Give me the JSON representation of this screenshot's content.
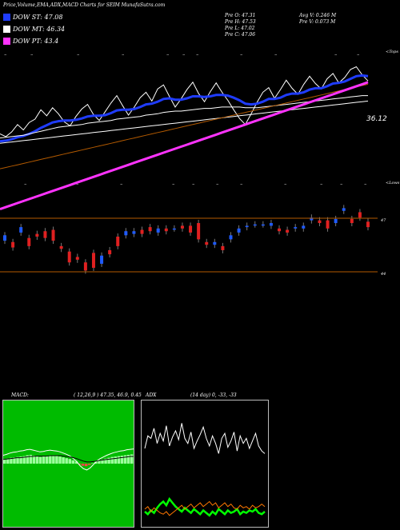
{
  "header": {
    "title": "Price,Volume,EMA,ADX,MACD Charts for SEIM MunafaSutra.com",
    "pivots": [
      {
        "label": "DOW ST: 47.08",
        "color": "#1f3cff"
      },
      {
        "label": "DOW MT: 46.34",
        "color": "#ffffff"
      },
      {
        "label": "DOW PT: 43.4",
        "color": "#ff33ff"
      }
    ],
    "prev": [
      "Pre O: 47.31",
      "Pre H: 47.53",
      "Pre L: 47.02",
      "Pre C: 47.06"
    ],
    "avg": [
      "Avg V: 0.246 M",
      "Pre V: 0.073 M"
    ]
  },
  "chart_data": [
    {
      "type": "line",
      "name": "price-ema-panel",
      "labels": {
        "tops": "<Tops",
        "lows": "<Lows",
        "last_close": "36.12"
      },
      "series": [
        {
          "color": "#ffffff",
          "values": [
            31.2,
            30.8,
            31.5,
            32.6,
            31.8,
            32.9,
            33.4,
            34.8,
            33.9,
            35.1,
            34.2,
            33.0,
            32.4,
            33.8,
            34.9,
            35.6,
            34.1,
            33.2,
            34.5,
            35.8,
            36.9,
            35.4,
            34.0,
            35.2,
            36.6,
            37.4,
            36.1,
            37.9,
            38.5,
            36.8,
            35.2,
            36.4,
            37.8,
            38.9,
            37.2,
            36.0,
            37.5,
            38.8,
            37.4,
            36.2,
            34.8,
            33.5,
            32.6,
            34.2,
            35.9,
            37.4,
            38.1,
            36.5,
            37.8,
            39.2,
            38.0,
            37.1,
            38.6,
            39.8,
            38.7,
            37.9,
            39.4,
            40.2,
            38.8,
            39.6,
            40.8,
            41.2,
            40.0,
            39.1
          ]
        },
        {
          "color": "#1f3cff",
          "values": [
            30.1,
            30.2,
            30.4,
            30.7,
            30.9,
            31.2,
            31.6,
            32.1,
            32.5,
            32.9,
            33.1,
            33.2,
            33.2,
            33.3,
            33.5,
            33.8,
            33.9,
            33.9,
            34.0,
            34.3,
            34.7,
            34.8,
            34.8,
            34.9,
            35.2,
            35.6,
            35.7,
            36.0,
            36.4,
            36.5,
            36.3,
            36.3,
            36.5,
            36.8,
            36.8,
            36.7,
            36.8,
            37.0,
            37.0,
            36.9,
            36.6,
            36.2,
            35.7,
            35.6,
            35.7,
            36.0,
            36.4,
            36.4,
            36.6,
            37.0,
            37.2,
            37.2,
            37.4,
            37.8,
            38.0,
            38.0,
            38.3,
            38.7,
            38.8,
            39.0,
            39.4,
            39.8,
            39.9,
            39.8
          ]
        },
        {
          "color": "#ffffff",
          "values": [
            30.6,
            30.7,
            30.8,
            30.9,
            31.0,
            31.2,
            31.4,
            31.6,
            31.8,
            32.0,
            32.2,
            32.3,
            32.4,
            32.5,
            32.6,
            32.8,
            32.9,
            33.0,
            33.1,
            33.2,
            33.4,
            33.5,
            33.6,
            33.7,
            33.8,
            34.0,
            34.1,
            34.2,
            34.4,
            34.5,
            34.6,
            34.6,
            34.7,
            34.8,
            34.9,
            35.0,
            35.0,
            35.1,
            35.2,
            35.2,
            35.2,
            35.2,
            35.1,
            35.1,
            35.1,
            35.2,
            35.3,
            35.4,
            35.5,
            35.6,
            35.7,
            35.8,
            35.9,
            36.0,
            36.1,
            36.2,
            36.3,
            36.4,
            36.5,
            36.6,
            36.7,
            36.8,
            36.9,
            36.9
          ]
        },
        {
          "color": "#ffffff",
          "values": [
            29.8,
            29.9,
            30.0,
            30.1,
            30.2,
            30.3,
            30.4,
            30.5,
            30.6,
            30.7,
            30.8,
            30.9,
            31.0,
            31.1,
            31.2,
            31.3,
            31.4,
            31.5,
            31.6,
            31.7,
            31.8,
            31.9,
            32.0,
            32.1,
            32.2,
            32.3,
            32.4,
            32.5,
            32.6,
            32.7,
            32.8,
            32.9,
            33.0,
            33.1,
            33.2,
            33.3,
            33.4,
            33.5,
            33.6,
            33.7,
            33.8,
            33.9,
            34.0,
            34.1,
            34.2,
            34.3,
            34.4,
            34.5,
            34.6,
            34.7,
            34.8,
            34.9,
            35.0,
            35.1,
            35.2,
            35.3,
            35.4,
            35.5,
            35.6,
            35.7,
            35.8,
            35.9,
            36.0,
            36.1
          ]
        },
        {
          "color": "#b35a00",
          "values": [
            26.0,
            26.2,
            26.4,
            26.6,
            26.8,
            27.0,
            27.2,
            27.4,
            27.6,
            27.8,
            28.0,
            28.2,
            28.4,
            28.6,
            28.8,
            29.0,
            29.2,
            29.4,
            29.6,
            29.8,
            30.0,
            30.2,
            30.4,
            30.6,
            30.8,
            31.0,
            31.2,
            31.4,
            31.6,
            31.8,
            32.0,
            32.2,
            32.4,
            32.6,
            32.8,
            33.0,
            33.2,
            33.4,
            33.6,
            33.8,
            34.0,
            34.2,
            34.4,
            34.6,
            34.8,
            35.0,
            35.2,
            35.4,
            35.6,
            35.8,
            36.0,
            36.2,
            36.4,
            36.6,
            36.8,
            37.0,
            37.2,
            37.4,
            37.6,
            37.8,
            38.0,
            38.2,
            38.4,
            38.6
          ]
        },
        {
          "color": "#ff33ff",
          "values": [
            20.0,
            20.3,
            20.6,
            20.9,
            21.2,
            21.5,
            21.8,
            22.1,
            22.4,
            22.7,
            23.0,
            23.3,
            23.6,
            23.9,
            24.2,
            24.5,
            24.8,
            25.1,
            25.4,
            25.7,
            26.0,
            26.3,
            26.6,
            26.9,
            27.2,
            27.5,
            27.8,
            28.1,
            28.4,
            28.7,
            29.0,
            29.3,
            29.6,
            29.9,
            30.2,
            30.5,
            30.8,
            31.1,
            31.4,
            31.7,
            32.0,
            32.3,
            32.6,
            32.9,
            33.2,
            33.5,
            33.8,
            34.1,
            34.4,
            34.7,
            35.0,
            35.3,
            35.6,
            35.9,
            36.2,
            36.5,
            36.8,
            37.1,
            37.4,
            37.7,
            38.0,
            38.3,
            38.6,
            38.9
          ]
        }
      ],
      "ylim": [
        19,
        44
      ]
    },
    {
      "type": "bar",
      "name": "candles",
      "ylabels": [
        "47",
        "44"
      ],
      "ylim": [
        43,
        49.6
      ],
      "candles": [
        {
          "o": 46.0,
          "c": 46.4,
          "up": true
        },
        {
          "o": 45.9,
          "c": 45.5,
          "up": false
        },
        {
          "o": 46.6,
          "c": 47.0,
          "up": true
        },
        {
          "o": 46.2,
          "c": 45.6,
          "up": false
        },
        {
          "o": 46.5,
          "c": 46.3,
          "up": false
        },
        {
          "o": 46.7,
          "c": 46.2,
          "up": false
        },
        {
          "o": 46.8,
          "c": 46.0,
          "up": false
        },
        {
          "o": 45.6,
          "c": 45.4,
          "up": false
        },
        {
          "o": 45.2,
          "c": 44.4,
          "up": false
        },
        {
          "o": 44.8,
          "c": 44.6,
          "up": false
        },
        {
          "o": 44.4,
          "c": 43.8,
          "up": false
        },
        {
          "o": 45.1,
          "c": 44.0,
          "up": false
        },
        {
          "o": 44.3,
          "c": 44.9,
          "up": true
        },
        {
          "o": 45.3,
          "c": 45.0,
          "up": false
        },
        {
          "o": 46.3,
          "c": 45.6,
          "up": false
        },
        {
          "o": 46.4,
          "c": 46.7,
          "up": true
        },
        {
          "o": 46.5,
          "c": 46.7,
          "up": true
        },
        {
          "o": 46.8,
          "c": 46.5,
          "up": false
        },
        {
          "o": 47.0,
          "c": 46.7,
          "up": false
        },
        {
          "o": 46.6,
          "c": 46.9,
          "up": true
        },
        {
          "o": 46.9,
          "c": 46.7,
          "up": false
        },
        {
          "o": 46.9,
          "c": 46.9,
          "up": true
        },
        {
          "o": 47.1,
          "c": 46.9,
          "up": false
        },
        {
          "o": 47.1,
          "c": 46.6,
          "up": false
        },
        {
          "o": 47.3,
          "c": 46.1,
          "up": false
        },
        {
          "o": 45.9,
          "c": 45.7,
          "up": false
        },
        {
          "o": 45.7,
          "c": 45.9,
          "up": true
        },
        {
          "o": 45.6,
          "c": 45.3,
          "up": false
        },
        {
          "o": 46.1,
          "c": 46.4,
          "up": true
        },
        {
          "o": 46.6,
          "c": 46.9,
          "up": true
        },
        {
          "o": 47.0,
          "c": 47.1,
          "up": true
        },
        {
          "o": 47.2,
          "c": 47.2,
          "up": true
        },
        {
          "o": 47.2,
          "c": 47.2,
          "up": true
        },
        {
          "o": 47.1,
          "c": 47.3,
          "up": true
        },
        {
          "o": 46.9,
          "c": 46.7,
          "up": false
        },
        {
          "o": 46.8,
          "c": 46.6,
          "up": false
        },
        {
          "o": 46.9,
          "c": 47.0,
          "up": true
        },
        {
          "o": 46.9,
          "c": 47.1,
          "up": true
        },
        {
          "o": 47.5,
          "c": 47.7,
          "up": true
        },
        {
          "o": 47.5,
          "c": 47.3,
          "up": false
        },
        {
          "o": 47.5,
          "c": 46.9,
          "up": false
        },
        {
          "o": 47.3,
          "c": 47.6,
          "up": true
        },
        {
          "o": 48.2,
          "c": 48.4,
          "up": true
        },
        {
          "o": 47.6,
          "c": 47.3,
          "up": false
        },
        {
          "o": 48.1,
          "c": 47.7,
          "up": false
        },
        {
          "o": 47.4,
          "c": 47.0,
          "up": false
        }
      ]
    },
    {
      "type": "line",
      "name": "macd-panel",
      "title": "MACD:",
      "params": "( 12,26,9 ) 47.35,  46.9,  0.45",
      "ylim": [
        -1.5,
        1.5
      ],
      "histogram": [
        0.1,
        0.12,
        0.14,
        0.15,
        0.16,
        0.17,
        0.18,
        0.2,
        0.21,
        0.19,
        0.17,
        0.16,
        0.17,
        0.19,
        0.2,
        0.2,
        0.19,
        0.17,
        0.15,
        0.13,
        0.11,
        0.08,
        0.05,
        -0.02,
        -0.05,
        -0.06,
        -0.03,
        0.01,
        0.05,
        0.08,
        0.1,
        0.12,
        0.14,
        0.16,
        0.17,
        0.18,
        0.19,
        0.2,
        0.21,
        0.22
      ],
      "series": [
        {
          "color": "#ffffff",
          "values": [
            0.2,
            0.22,
            0.25,
            0.27,
            0.28,
            0.3,
            0.31,
            0.33,
            0.34,
            0.32,
            0.3,
            0.28,
            0.29,
            0.31,
            0.32,
            0.31,
            0.3,
            0.28,
            0.25,
            0.22,
            0.18,
            0.12,
            0.05,
            -0.05,
            -0.12,
            -0.15,
            -0.1,
            -0.02,
            0.06,
            0.12,
            0.16,
            0.2,
            0.23,
            0.26,
            0.28,
            0.3,
            0.31,
            0.33,
            0.34,
            0.35
          ]
        },
        {
          "color": "#000000",
          "values": [
            0.1,
            0.11,
            0.12,
            0.13,
            0.14,
            0.14,
            0.15,
            0.16,
            0.17,
            0.17,
            0.18,
            0.18,
            0.18,
            0.18,
            0.19,
            0.19,
            0.19,
            0.19,
            0.18,
            0.17,
            0.16,
            0.14,
            0.12,
            0.09,
            0.06,
            0.04,
            0.04,
            0.05,
            0.06,
            0.08,
            0.09,
            0.1,
            0.11,
            0.12,
            0.13,
            0.14,
            0.15,
            0.16,
            0.17,
            0.17
          ]
        }
      ]
    },
    {
      "type": "line",
      "name": "adx-panel",
      "title": "ADX",
      "params": "(14  day) 0,  -33,  -33",
      "ylim": [
        0,
        100
      ],
      "series": [
        {
          "color": "#ffffff",
          "values": [
            62,
            72,
            70,
            78,
            66,
            74,
            68,
            80,
            64,
            71,
            76,
            69,
            82,
            70,
            66,
            75,
            62,
            68,
            73,
            79,
            70,
            64,
            72,
            66,
            58,
            70,
            74,
            63,
            68,
            75,
            60,
            72,
            66,
            70,
            62,
            68,
            74,
            64,
            60,
            58
          ]
        },
        {
          "color": "#00ff00",
          "values": [
            12,
            10,
            13,
            11,
            15,
            18,
            20,
            17,
            22,
            19,
            16,
            14,
            12,
            15,
            13,
            11,
            14,
            12,
            10,
            13,
            11,
            9,
            12,
            10,
            14,
            12,
            10,
            13,
            11,
            12,
            14,
            10,
            12,
            11,
            13,
            12,
            14,
            11,
            10,
            12
          ]
        },
        {
          "color": "#ff7700",
          "values": [
            14,
            16,
            12,
            15,
            13,
            11,
            10,
            12,
            9,
            11,
            13,
            15,
            17,
            14,
            16,
            18,
            15,
            17,
            19,
            16,
            18,
            20,
            17,
            19,
            15,
            17,
            19,
            16,
            18,
            15,
            14,
            17,
            15,
            16,
            14,
            17,
            15,
            16,
            18,
            16
          ]
        }
      ]
    }
  ]
}
